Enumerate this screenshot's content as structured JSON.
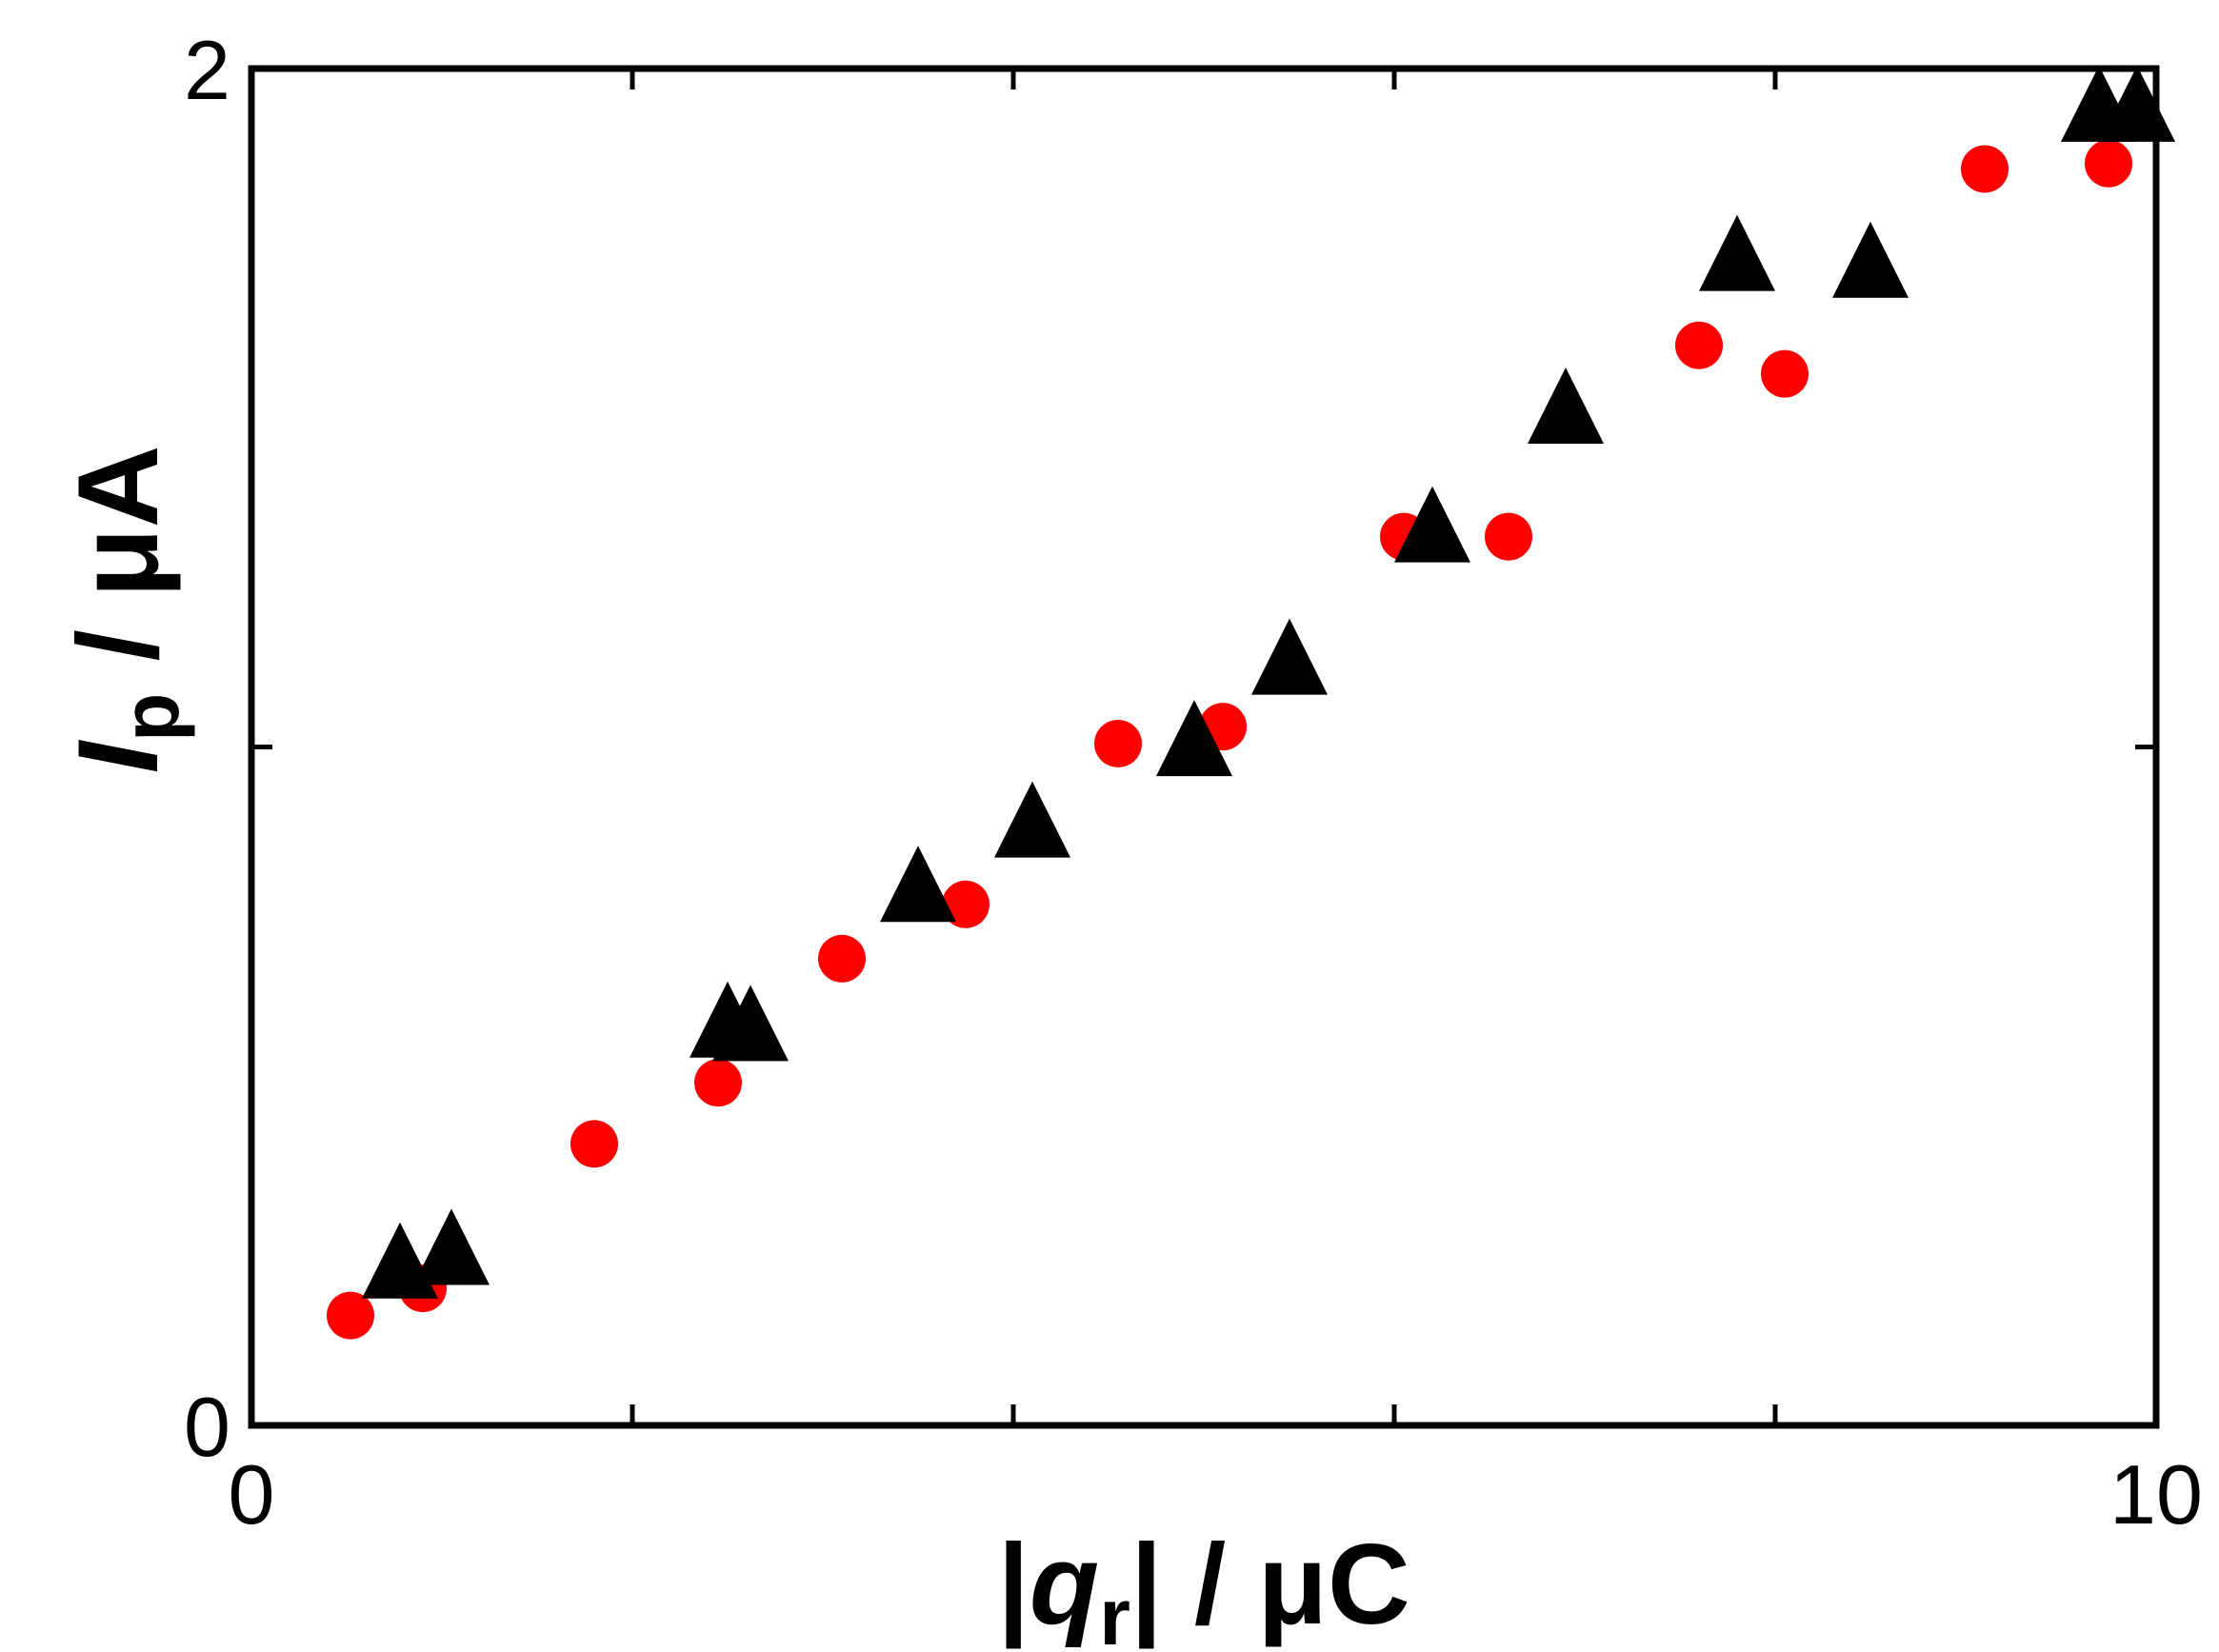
{
  "chart_data": {
    "type": "scatter",
    "xlabel": {
      "prefix": "|",
      "var": "q",
      "sub": "r",
      "suffix": "| / μC"
    },
    "ylabel": {
      "var": "I",
      "sub": "p",
      "suffix": " / μA"
    },
    "xlim": [
      0,
      10
    ],
    "ylim": [
      0,
      2
    ],
    "x_ticks": [
      0,
      2,
      4,
      6,
      8,
      10
    ],
    "y_ticks": [
      0,
      1,
      2
    ],
    "x_tick_labels": [
      "0",
      "10"
    ],
    "y_tick_labels": [
      "0",
      "2"
    ],
    "grid": false,
    "series": [
      {
        "marker": "circle",
        "color": "#ff0000",
        "points": [
          [
            0.52,
            0.162
          ],
          [
            0.9,
            0.202
          ],
          [
            1.8,
            0.415
          ],
          [
            2.45,
            0.505
          ],
          [
            3.1,
            0.688
          ],
          [
            3.75,
            0.768
          ],
          [
            4.55,
            1.005
          ],
          [
            5.1,
            1.03
          ],
          [
            6.05,
            1.31
          ],
          [
            6.6,
            1.31
          ],
          [
            7.6,
            1.592
          ],
          [
            8.05,
            1.55
          ],
          [
            9.1,
            1.852
          ],
          [
            9.75,
            1.86
          ]
        ]
      },
      {
        "marker": "triangle",
        "color": "#000000",
        "points": [
          [
            0.78,
            0.225
          ],
          [
            1.05,
            0.245
          ],
          [
            2.5,
            0.58
          ],
          [
            2.62,
            0.575
          ],
          [
            3.5,
            0.78
          ],
          [
            4.1,
            0.875
          ],
          [
            4.95,
            0.995
          ],
          [
            5.45,
            1.115
          ],
          [
            6.2,
            1.31
          ],
          [
            6.9,
            1.485
          ],
          [
            7.8,
            1.71
          ],
          [
            8.5,
            1.7
          ],
          [
            9.7,
            1.93
          ],
          [
            9.9,
            1.93
          ]
        ]
      }
    ]
  }
}
